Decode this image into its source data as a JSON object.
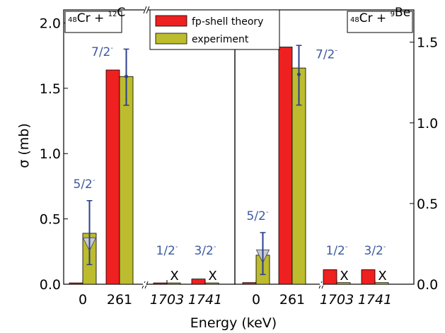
{
  "chart_data": {
    "type": "bar",
    "colors": {
      "theory": "#ee2020",
      "experiment": "#bcbc2e",
      "error": "#2c3f8c",
      "spin_label": "#3d5a9e",
      "arrow_fill": "#c9ccd6"
    },
    "legend": {
      "placement": "top-center",
      "entries": [
        "fp-shell theory",
        "experiment"
      ]
    },
    "xlabel": "Energy (keV)",
    "ylabel": "σ (mb)",
    "panels": [
      {
        "reaction": {
          "beam_mass": "48",
          "beam": "Cr",
          "target_mass": "12",
          "target": "C"
        },
        "ylim": [
          0,
          2.1
        ],
        "yticks": [
          "0.0",
          "0.5",
          "1.0",
          "1.5",
          "2.0"
        ],
        "categories": [
          "0",
          "261",
          "1703",
          "1741"
        ],
        "italic_categories": [
          false,
          false,
          true,
          true
        ],
        "series": [
          {
            "name": "fp-shell theory",
            "values": [
              0.01,
              1.64,
              0.01,
              0.04
            ]
          },
          {
            "name": "experiment",
            "values": [
              0.39,
              1.59,
              0.01,
              0.01
            ]
          }
        ],
        "error_center": [
          0.29,
          1.59,
          null,
          null
        ],
        "error_low": [
          0.15,
          1.37,
          null,
          null
        ],
        "error_high": [
          0.64,
          1.8,
          null,
          null
        ],
        "spin_labels": [
          {
            "base": "5/2",
            "sup": "-"
          },
          {
            "base": "7/2",
            "sup": "-"
          },
          {
            "base": "1/2",
            "sup": "-"
          },
          {
            "base": "3/2",
            "sup": "-"
          }
        ],
        "x_markers": [
          "",
          "",
          "X",
          "X"
        ],
        "axis_break_after_index": 1
      },
      {
        "reaction": {
          "beam_mass": "48",
          "beam": "Cr",
          "target_mass": "9",
          "target": "Be"
        },
        "ylim": [
          0,
          1.7
        ],
        "yticks": [
          "0.0",
          "0.5",
          "1.0",
          "1.5"
        ],
        "categories": [
          "0",
          "261",
          "1703",
          "1741"
        ],
        "italic_categories": [
          false,
          false,
          true,
          true
        ],
        "series": [
          {
            "name": "fp-shell theory",
            "values": [
              0.01,
              1.47,
              0.09,
              0.09
            ]
          },
          {
            "name": "experiment",
            "values": [
              0.18,
              1.34,
              0.01,
              0.01
            ]
          }
        ],
        "error_center": [
          0.16,
          1.3,
          null,
          null
        ],
        "error_low": [
          0.06,
          1.11,
          null,
          null
        ],
        "error_high": [
          0.32,
          1.48,
          null,
          null
        ],
        "spin_labels": [
          {
            "base": "5/2",
            "sup": "-"
          },
          {
            "base": "7/2",
            "sup": "-"
          },
          {
            "base": "1/2",
            "sup": "-"
          },
          {
            "base": "3/2",
            "sup": "-"
          }
        ],
        "x_markers": [
          "",
          "",
          "X",
          "X"
        ],
        "axis_break_after_index": 1
      }
    ]
  }
}
